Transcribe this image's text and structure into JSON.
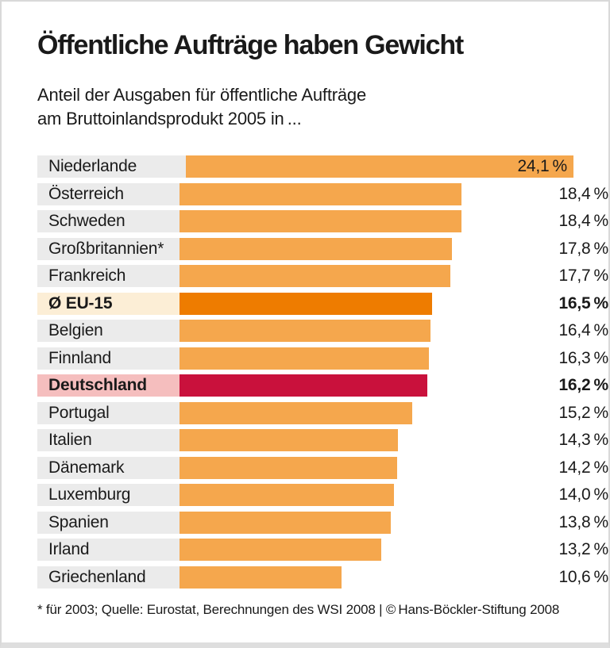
{
  "header": {
    "title": "Öffentliche Aufträge haben Gewicht",
    "subtitle_line1": "Anteil der Ausgaben für öffentliche Aufträge",
    "subtitle_line2": "am Bruttoinlandsprodukt 2005 in ..."
  },
  "footer": {
    "footnote": "* für 2003; Quelle: Eurostat, Berechnungen des WSI 2008 | © Hans-Böckler-Stiftung 2008"
  },
  "chart_data": {
    "type": "bar",
    "orientation": "horizontal",
    "title": "Öffentliche Aufträge haben Gewicht",
    "subtitle": "Anteil der Ausgaben für öffentliche Aufträge am Bruttoinlandsprodukt 2005 in ...",
    "unit": "%",
    "xlim": [
      0,
      24.1
    ],
    "grid": false,
    "legend": "none",
    "categories": [
      "Niederlande",
      "Österreich",
      "Schweden",
      "Großbritannien*",
      "Frankreich",
      "Ø EU-15",
      "Belgien",
      "Finnland",
      "Deutschland",
      "Portugal",
      "Italien",
      "Dänemark",
      "Luxemburg",
      "Spanien",
      "Irland",
      "Griechenland"
    ],
    "values": [
      24.1,
      18.4,
      18.4,
      17.8,
      17.7,
      16.5,
      16.4,
      16.3,
      16.2,
      15.2,
      14.3,
      14.2,
      14.0,
      13.8,
      13.2,
      10.6
    ],
    "rows": [
      {
        "label": "Niederlande",
        "value": 24.1,
        "display": "24,1 %",
        "highlight": "none",
        "bold": false,
        "value_inside": true
      },
      {
        "label": "Österreich",
        "value": 18.4,
        "display": "18,4 %",
        "highlight": "none",
        "bold": false,
        "value_inside": false
      },
      {
        "label": "Schweden",
        "value": 18.4,
        "display": "18,4 %",
        "highlight": "none",
        "bold": false,
        "value_inside": false
      },
      {
        "label": "Großbritannien*",
        "value": 17.8,
        "display": "17,8 %",
        "highlight": "none",
        "bold": false,
        "value_inside": false
      },
      {
        "label": "Frankreich",
        "value": 17.7,
        "display": "17,7 %",
        "highlight": "none",
        "bold": false,
        "value_inside": false
      },
      {
        "label": "Ø EU-15",
        "value": 16.5,
        "display": "16,5 %",
        "highlight": "eu15",
        "bold": true,
        "value_inside": false
      },
      {
        "label": "Belgien",
        "value": 16.4,
        "display": "16,4 %",
        "highlight": "none",
        "bold": false,
        "value_inside": false
      },
      {
        "label": "Finnland",
        "value": 16.3,
        "display": "16,3 %",
        "highlight": "none",
        "bold": false,
        "value_inside": false
      },
      {
        "label": "Deutschland",
        "value": 16.2,
        "display": "16,2 %",
        "highlight": "germany",
        "bold": true,
        "value_inside": false
      },
      {
        "label": "Portugal",
        "value": 15.2,
        "display": "15,2 %",
        "highlight": "none",
        "bold": false,
        "value_inside": false
      },
      {
        "label": "Italien",
        "value": 14.3,
        "display": "14,3 %",
        "highlight": "none",
        "bold": false,
        "value_inside": false
      },
      {
        "label": "Dänemark",
        "value": 14.2,
        "display": "14,2 %",
        "highlight": "none",
        "bold": false,
        "value_inside": false
      },
      {
        "label": "Luxemburg",
        "value": 14.0,
        "display": "14,0 %",
        "highlight": "none",
        "bold": false,
        "value_inside": false
      },
      {
        "label": "Spanien",
        "value": 13.8,
        "display": "13,8 %",
        "highlight": "none",
        "bold": false,
        "value_inside": false
      },
      {
        "label": "Irland",
        "value": 13.2,
        "display": "13,2 %",
        "highlight": "none",
        "bold": false,
        "value_inside": false
      },
      {
        "label": "Griechenland",
        "value": 10.6,
        "display": "10,6 %",
        "highlight": "none",
        "bold": false,
        "value_inside": false
      }
    ],
    "colors": {
      "bar_default": "#f5a74d",
      "bar_eu15": "#ee7c00",
      "bar_germany": "#c9113c",
      "label_bg_default": "#ebebeb",
      "label_bg_eu15": "#fceed6",
      "label_bg_germany": "#f5bebe",
      "text": "#1a1a1a",
      "border": "#d9d9d9"
    }
  }
}
